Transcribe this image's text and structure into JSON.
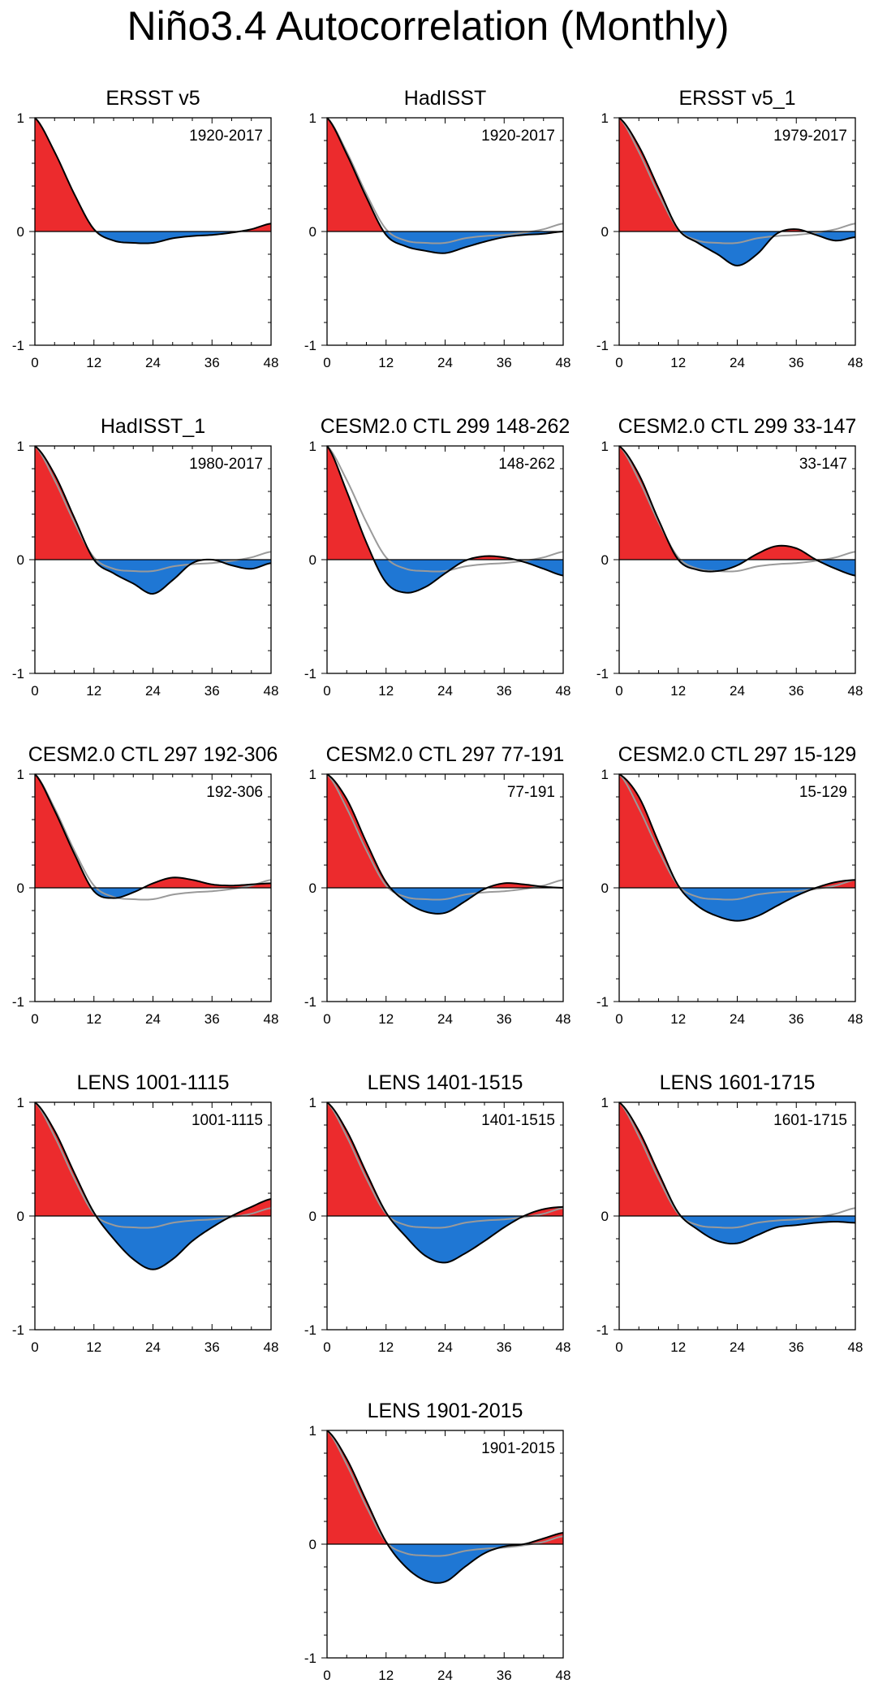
{
  "title": "Niño3.4 Autocorrelation (Monthly)",
  "colors": {
    "positive_fill": "#ec2b2d",
    "negative_fill": "#1f77d4",
    "line": "#000000",
    "reference_line": "#9a9a9a"
  },
  "chart_data": [
    {
      "type": "area",
      "title": "ERSST v5",
      "period": "1920-2017",
      "xlim": [
        0,
        48
      ],
      "ylim": [
        -1,
        1
      ],
      "xticks": [
        0,
        12,
        24,
        36,
        48
      ],
      "yticks": [
        1,
        0,
        -1
      ],
      "x": [
        0,
        4,
        8,
        12,
        16,
        20,
        24,
        28,
        32,
        36,
        40,
        44,
        48
      ],
      "values": [
        1.0,
        0.7,
        0.33,
        0.02,
        -0.08,
        -0.1,
        -0.1,
        -0.06,
        -0.04,
        -0.03,
        -0.01,
        0.02,
        0.07
      ],
      "reference": null
    },
    {
      "type": "area",
      "title": "HadISST",
      "period": "1920-2017",
      "xlim": [
        0,
        48
      ],
      "ylim": [
        -1,
        1
      ],
      "xticks": [
        0,
        12,
        24,
        36,
        48
      ],
      "yticks": [
        1,
        0,
        -1
      ],
      "x": [
        0,
        4,
        8,
        12,
        16,
        20,
        24,
        28,
        32,
        36,
        40,
        44,
        48
      ],
      "values": [
        1.0,
        0.68,
        0.3,
        -0.03,
        -0.13,
        -0.17,
        -0.19,
        -0.14,
        -0.09,
        -0.05,
        -0.03,
        -0.02,
        0.0
      ],
      "reference": [
        1.0,
        0.7,
        0.33,
        0.02,
        -0.08,
        -0.1,
        -0.1,
        -0.06,
        -0.04,
        -0.03,
        -0.01,
        0.02,
        0.07
      ]
    },
    {
      "type": "area",
      "title": "ERSST v5_1",
      "period": "1979-2017",
      "xlim": [
        0,
        48
      ],
      "ylim": [
        -1,
        1
      ],
      "xticks": [
        0,
        12,
        24,
        36,
        48
      ],
      "yticks": [
        1,
        0,
        -1
      ],
      "x": [
        0,
        4,
        8,
        12,
        16,
        20,
        24,
        28,
        32,
        36,
        40,
        44,
        48
      ],
      "values": [
        1.0,
        0.75,
        0.38,
        0.02,
        -0.1,
        -0.2,
        -0.3,
        -0.2,
        -0.02,
        0.02,
        -0.03,
        -0.08,
        -0.05
      ],
      "reference": [
        1.0,
        0.7,
        0.33,
        0.02,
        -0.08,
        -0.1,
        -0.1,
        -0.06,
        -0.04,
        -0.03,
        -0.01,
        0.02,
        0.07
      ]
    },
    {
      "type": "area",
      "title": "HadISST_1",
      "period": "1980-2017",
      "xlim": [
        0,
        48
      ],
      "ylim": [
        -1,
        1
      ],
      "xticks": [
        0,
        12,
        24,
        36,
        48
      ],
      "yticks": [
        1,
        0,
        -1
      ],
      "x": [
        0,
        4,
        8,
        12,
        16,
        20,
        24,
        28,
        32,
        36,
        40,
        44,
        48
      ],
      "values": [
        1.0,
        0.75,
        0.37,
        0.0,
        -0.12,
        -0.21,
        -0.3,
        -0.18,
        -0.03,
        0.0,
        -0.05,
        -0.08,
        -0.03
      ],
      "reference": [
        1.0,
        0.7,
        0.33,
        0.02,
        -0.08,
        -0.1,
        -0.1,
        -0.06,
        -0.04,
        -0.03,
        -0.01,
        0.02,
        0.07
      ]
    },
    {
      "type": "area",
      "title": "CESM2.0 CTL 299 148-262",
      "period": "148-262",
      "xlim": [
        0,
        48
      ],
      "ylim": [
        -1,
        1
      ],
      "xticks": [
        0,
        12,
        24,
        36,
        48
      ],
      "yticks": [
        1,
        0,
        -1
      ],
      "x": [
        0,
        4,
        8,
        12,
        16,
        20,
        24,
        28,
        32,
        36,
        40,
        44,
        48
      ],
      "values": [
        1.0,
        0.6,
        0.15,
        -0.2,
        -0.29,
        -0.24,
        -0.12,
        -0.01,
        0.03,
        0.02,
        -0.02,
        -0.08,
        -0.14
      ],
      "reference": [
        1.0,
        0.7,
        0.33,
        0.02,
        -0.08,
        -0.1,
        -0.1,
        -0.06,
        -0.04,
        -0.03,
        -0.01,
        0.02,
        0.07
      ]
    },
    {
      "type": "area",
      "title": "CESM2.0 CTL 299 33-147",
      "period": "33-147",
      "xlim": [
        0,
        48
      ],
      "ylim": [
        -1,
        1
      ],
      "xticks": [
        0,
        12,
        24,
        36,
        48
      ],
      "yticks": [
        1,
        0,
        -1
      ],
      "x": [
        0,
        4,
        8,
        12,
        16,
        20,
        24,
        28,
        32,
        36,
        40,
        44,
        48
      ],
      "values": [
        1.0,
        0.75,
        0.35,
        0.0,
        -0.09,
        -0.1,
        -0.05,
        0.05,
        0.12,
        0.1,
        0.0,
        -0.08,
        -0.14
      ],
      "reference": [
        1.0,
        0.7,
        0.33,
        0.02,
        -0.08,
        -0.1,
        -0.1,
        -0.06,
        -0.04,
        -0.03,
        -0.01,
        0.02,
        0.07
      ]
    },
    {
      "type": "area",
      "title": "CESM2.0 CTL 297 192-306",
      "period": "192-306",
      "xlim": [
        0,
        48
      ],
      "ylim": [
        -1,
        1
      ],
      "xticks": [
        0,
        12,
        24,
        36,
        48
      ],
      "yticks": [
        1,
        0,
        -1
      ],
      "x": [
        0,
        4,
        8,
        12,
        16,
        20,
        24,
        28,
        32,
        36,
        40,
        44,
        48
      ],
      "values": [
        1.0,
        0.68,
        0.3,
        -0.03,
        -0.09,
        -0.04,
        0.04,
        0.09,
        0.07,
        0.03,
        0.02,
        0.03,
        0.04
      ],
      "reference": [
        1.0,
        0.7,
        0.33,
        0.02,
        -0.08,
        -0.1,
        -0.1,
        -0.06,
        -0.04,
        -0.03,
        -0.01,
        0.02,
        0.07
      ]
    },
    {
      "type": "area",
      "title": "CESM2.0 CTL 297 77-191",
      "period": "77-191",
      "xlim": [
        0,
        48
      ],
      "ylim": [
        -1,
        1
      ],
      "xticks": [
        0,
        12,
        24,
        36,
        48
      ],
      "yticks": [
        1,
        0,
        -1
      ],
      "x": [
        0,
        4,
        8,
        12,
        16,
        20,
        24,
        28,
        32,
        36,
        40,
        44,
        48
      ],
      "values": [
        1.0,
        0.78,
        0.4,
        0.05,
        -0.12,
        -0.21,
        -0.22,
        -0.12,
        -0.01,
        0.04,
        0.03,
        0.01,
        0.0
      ],
      "reference": [
        1.0,
        0.7,
        0.33,
        0.02,
        -0.08,
        -0.1,
        -0.1,
        -0.06,
        -0.04,
        -0.03,
        -0.01,
        0.02,
        0.07
      ]
    },
    {
      "type": "area",
      "title": "CESM2.0 CTL 297 15-129",
      "period": "15-129",
      "xlim": [
        0,
        48
      ],
      "ylim": [
        -1,
        1
      ],
      "xticks": [
        0,
        12,
        24,
        36,
        48
      ],
      "yticks": [
        1,
        0,
        -1
      ],
      "x": [
        0,
        4,
        8,
        12,
        16,
        20,
        24,
        28,
        32,
        36,
        40,
        44,
        48
      ],
      "values": [
        1.0,
        0.8,
        0.4,
        0.02,
        -0.16,
        -0.25,
        -0.29,
        -0.25,
        -0.16,
        -0.07,
        0.0,
        0.05,
        0.07
      ],
      "reference": [
        1.0,
        0.7,
        0.33,
        0.02,
        -0.08,
        -0.1,
        -0.1,
        -0.06,
        -0.04,
        -0.03,
        -0.01,
        0.02,
        0.07
      ]
    },
    {
      "type": "area",
      "title": "LENS 1001-1115",
      "period": "1001-1115",
      "xlim": [
        0,
        48
      ],
      "ylim": [
        -1,
        1
      ],
      "xticks": [
        0,
        12,
        24,
        36,
        48
      ],
      "yticks": [
        1,
        0,
        -1
      ],
      "x": [
        0,
        4,
        8,
        12,
        16,
        20,
        24,
        28,
        32,
        36,
        40,
        44,
        48
      ],
      "values": [
        1.0,
        0.75,
        0.38,
        0.03,
        -0.2,
        -0.38,
        -0.47,
        -0.38,
        -0.22,
        -0.1,
        0.0,
        0.08,
        0.15
      ],
      "reference": [
        1.0,
        0.7,
        0.33,
        0.02,
        -0.08,
        -0.1,
        -0.1,
        -0.06,
        -0.04,
        -0.03,
        -0.01,
        0.02,
        0.07
      ]
    },
    {
      "type": "area",
      "title": "LENS 1401-1515",
      "period": "1401-1515",
      "xlim": [
        0,
        48
      ],
      "ylim": [
        -1,
        1
      ],
      "xticks": [
        0,
        12,
        24,
        36,
        48
      ],
      "yticks": [
        1,
        0,
        -1
      ],
      "x": [
        0,
        4,
        8,
        12,
        16,
        20,
        24,
        28,
        32,
        36,
        40,
        44,
        48
      ],
      "values": [
        1.0,
        0.75,
        0.38,
        0.03,
        -0.18,
        -0.35,
        -0.41,
        -0.33,
        -0.22,
        -0.1,
        0.0,
        0.06,
        0.08
      ],
      "reference": [
        1.0,
        0.7,
        0.33,
        0.02,
        -0.08,
        -0.1,
        -0.1,
        -0.06,
        -0.04,
        -0.03,
        -0.01,
        0.02,
        0.07
      ]
    },
    {
      "type": "area",
      "title": "LENS 1601-1715",
      "period": "1601-1715",
      "xlim": [
        0,
        48
      ],
      "ylim": [
        -1,
        1
      ],
      "xticks": [
        0,
        12,
        24,
        36,
        48
      ],
      "yticks": [
        1,
        0,
        -1
      ],
      "x": [
        0,
        4,
        8,
        12,
        16,
        20,
        24,
        28,
        32,
        36,
        40,
        44,
        48
      ],
      "values": [
        1.0,
        0.75,
        0.38,
        0.03,
        -0.12,
        -0.22,
        -0.24,
        -0.17,
        -0.1,
        -0.08,
        -0.06,
        -0.05,
        -0.06
      ],
      "reference": [
        1.0,
        0.7,
        0.33,
        0.02,
        -0.08,
        -0.1,
        -0.1,
        -0.06,
        -0.04,
        -0.03,
        -0.01,
        0.02,
        0.07
      ]
    },
    {
      "type": "area",
      "title": "LENS 1901-2015",
      "period": "1901-2015",
      "xlim": [
        0,
        48
      ],
      "ylim": [
        -1,
        1
      ],
      "xticks": [
        0,
        12,
        24,
        36,
        48
      ],
      "yticks": [
        1,
        0,
        -1
      ],
      "x": [
        0,
        4,
        8,
        12,
        16,
        20,
        24,
        28,
        32,
        36,
        40,
        44,
        48
      ],
      "values": [
        1.0,
        0.75,
        0.38,
        0.02,
        -0.2,
        -0.32,
        -0.33,
        -0.2,
        -0.08,
        -0.02,
        0.0,
        0.05,
        0.1
      ],
      "reference": [
        1.0,
        0.7,
        0.33,
        0.02,
        -0.08,
        -0.1,
        -0.1,
        -0.06,
        -0.04,
        -0.03,
        -0.01,
        0.02,
        0.07
      ]
    }
  ]
}
